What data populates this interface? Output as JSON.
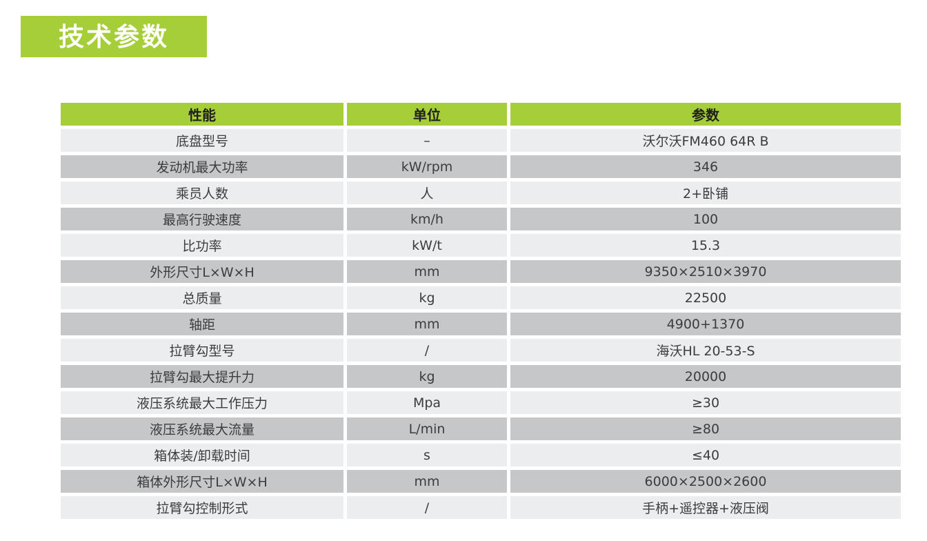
{
  "page_title": {
    "label": "技术参数"
  },
  "colors": {
    "green": "#a5ce39",
    "row_light": "#ebedee",
    "row_dark": "#c6c7c9",
    "header_text": "#1f1f1f",
    "body_text": "#3c3c3c"
  },
  "table": {
    "headers": [
      "性能",
      "单位",
      "参数"
    ],
    "rows": [
      [
        "底盘型号",
        "–",
        "沃尔沃FM460 64R B"
      ],
      [
        "发动机最大功率",
        "kW/rpm",
        "346"
      ],
      [
        "乘员人数",
        "人",
        "2+卧铺"
      ],
      [
        "最高行驶速度",
        "km/h",
        "100"
      ],
      [
        "比功率",
        "kW/t",
        "15.3"
      ],
      [
        "外形尺寸L×W×H",
        "mm",
        "9350×2510×3970"
      ],
      [
        "总质量",
        "kg",
        "22500"
      ],
      [
        "轴距",
        "mm",
        "4900+1370"
      ],
      [
        "拉臂勾型号",
        "/",
        "海沃HL 20-53-S"
      ],
      [
        "拉臂勾最大提升力",
        "kg",
        "20000"
      ],
      [
        "液压系统最大工作压力",
        "Mpa",
        "≥30"
      ],
      [
        "液压系统最大流量",
        "L/min",
        "≥80"
      ],
      [
        "箱体装/卸载时间",
        "s",
        "≤40"
      ],
      [
        "箱体外形尺寸L×W×H",
        "mm",
        "6000×2500×2600"
      ],
      [
        "拉臂勾控制形式",
        "/",
        "手柄+遥控器+液压阀"
      ]
    ]
  }
}
